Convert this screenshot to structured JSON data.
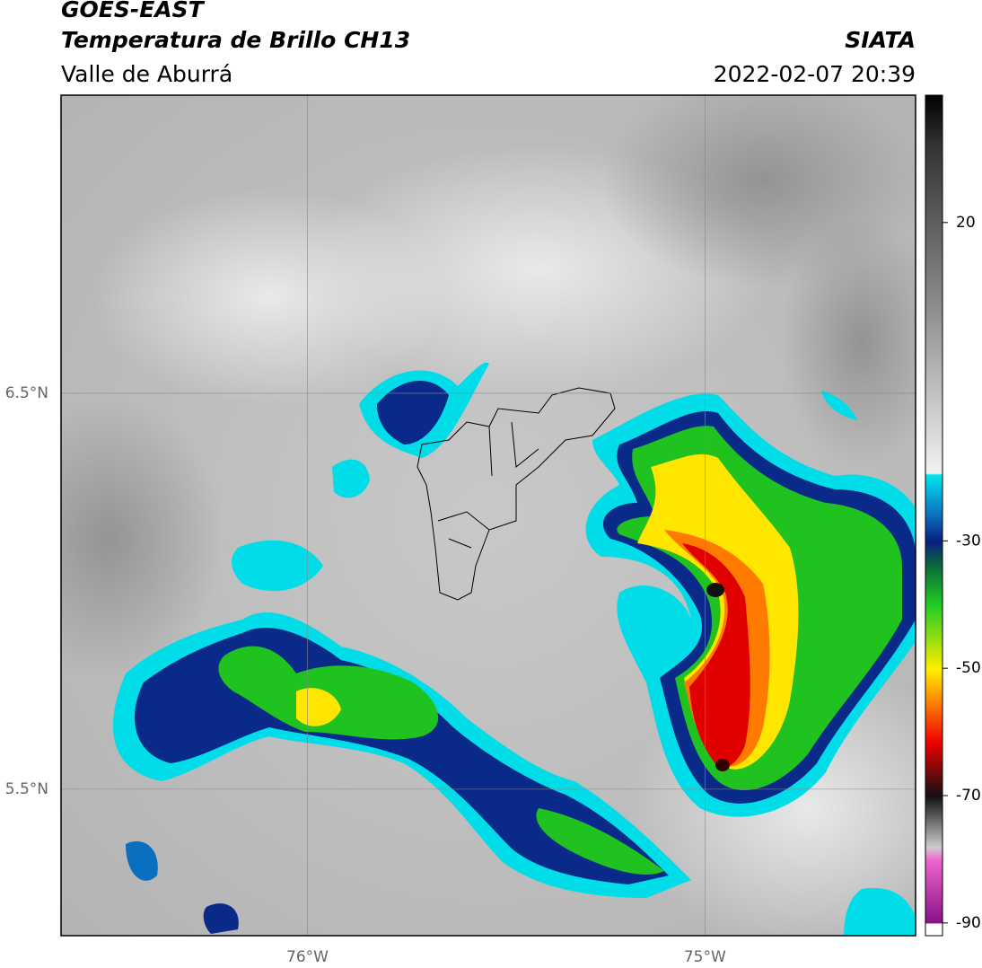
{
  "header": {
    "title": "GOES-EAST",
    "subtitle": "Temperatura de Brillo CH13",
    "region": "Valle de Aburrá",
    "source": "SIATA",
    "datetime": "2022-02-07 20:39"
  },
  "map": {
    "xlim": [
      -76.62,
      -74.47
    ],
    "ylim": [
      5.13,
      7.253
    ],
    "xticks": [
      {
        "value": -76,
        "label": "76°W"
      },
      {
        "value": -75,
        "label": "75°W"
      }
    ],
    "yticks": [
      {
        "value": 6.5,
        "label": "6.5°N"
      },
      {
        "value": 5.5,
        "label": "5.5°N"
      }
    ],
    "grid": true
  },
  "colorbar": {
    "lim": [
      -92,
      40
    ],
    "ticks": [
      20,
      -30,
      -50,
      -70,
      -90
    ]
  }
}
